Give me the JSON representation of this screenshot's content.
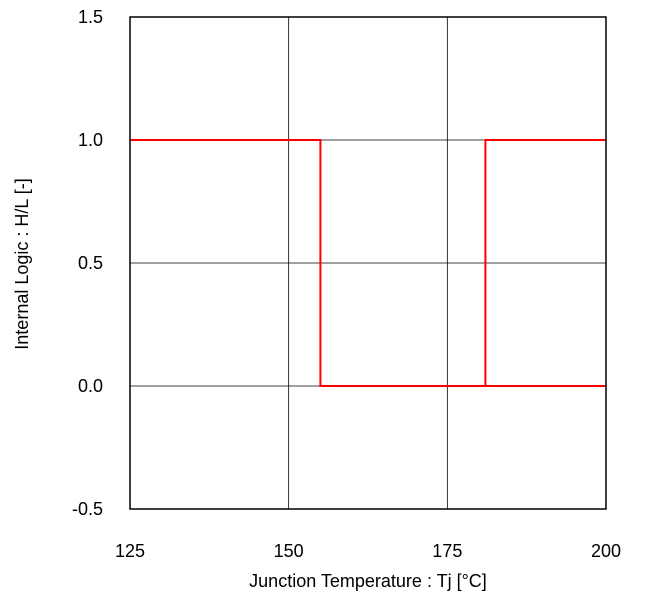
{
  "chart_data": {
    "type": "line",
    "title": "",
    "xlabel": "Junction Temperature : Tj [°C]",
    "ylabel": "Internal Logic : H/L [-]",
    "xlim": [
      125,
      200
    ],
    "ylim": [
      -0.5,
      1.5
    ],
    "x_ticks": [
      125,
      150,
      175,
      200
    ],
    "x_tick_labels": [
      "125",
      "150",
      "175",
      "200"
    ],
    "y_ticks": [
      -0.5,
      0.0,
      0.5,
      1.0,
      1.5
    ],
    "y_tick_labels": [
      "-0.5",
      "0.0",
      "0.5",
      "1.0",
      "1.5"
    ],
    "grid": true,
    "series": [
      {
        "color": "#ff0000",
        "x": [
          125,
          155,
          155,
          181,
          181,
          200
        ],
        "y": [
          1.0,
          1.0,
          0.0,
          0.0,
          1.0,
          1.0
        ]
      },
      {
        "color": "#ff0000",
        "x": [
          181,
          200
        ],
        "y": [
          0.0,
          0.0
        ]
      }
    ],
    "gridline_color": "#000000"
  }
}
